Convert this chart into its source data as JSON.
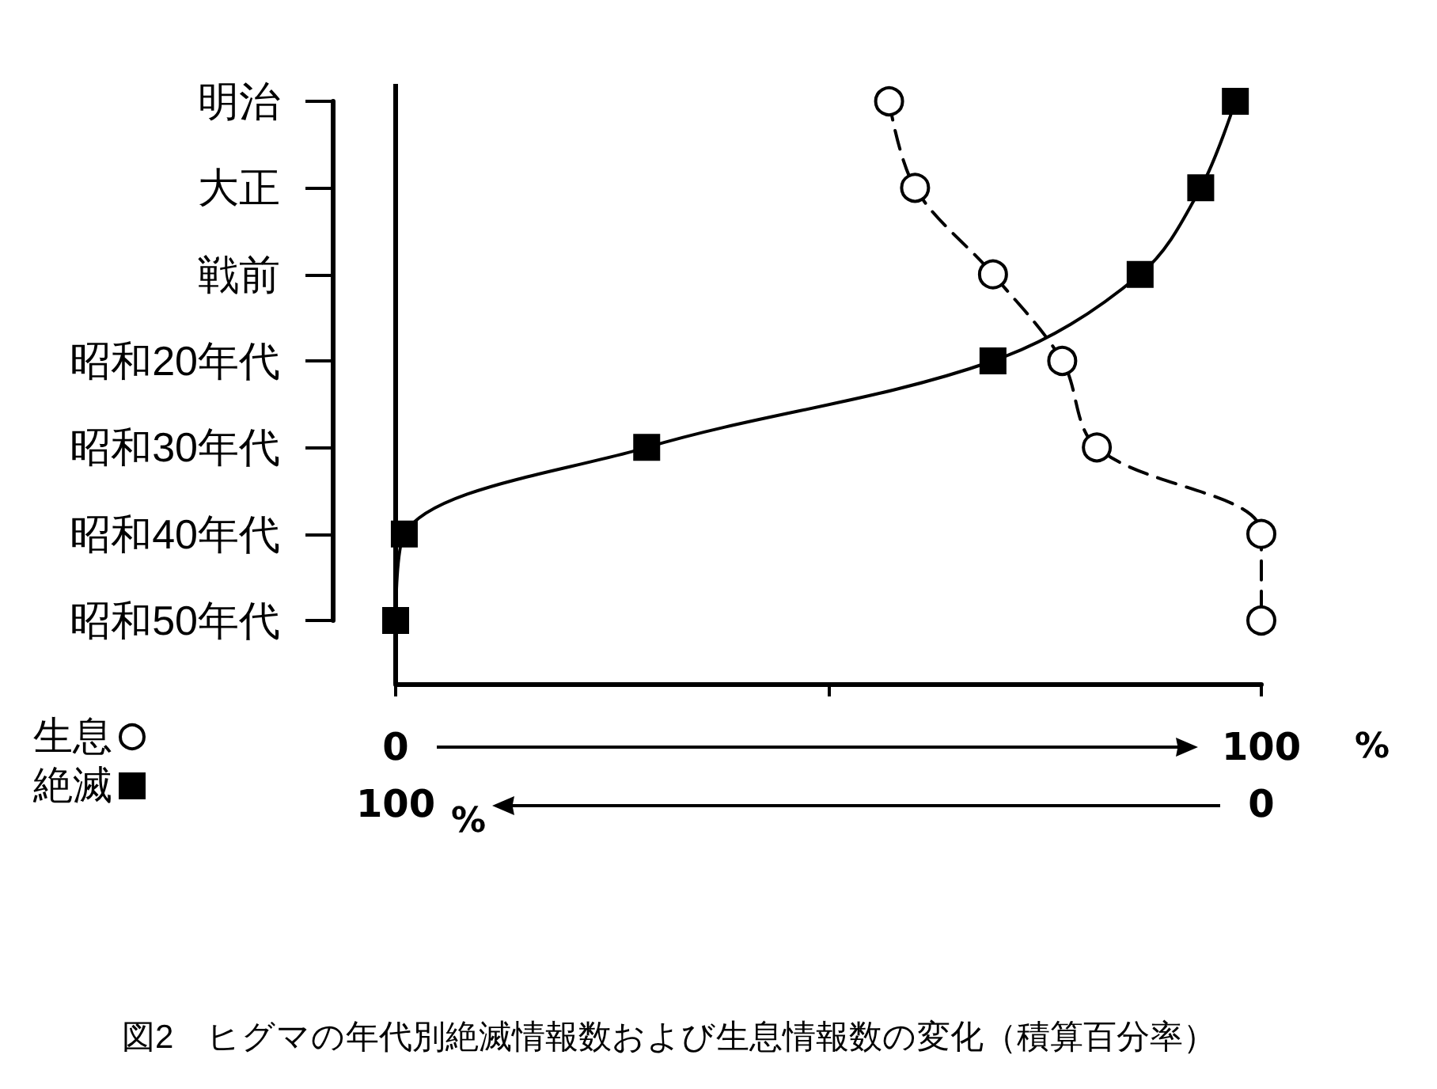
{
  "chart_data": {
    "type": "line",
    "orientation": "horizontal",
    "title": "図2　ヒグマの年代別絶滅情報数および生息情報数の変化（積算百分率）",
    "xlabel": "%",
    "x2label": "%",
    "categories": [
      "明治",
      "大正",
      "戦前",
      "昭和20年代",
      "昭和30年代",
      "昭和40年代",
      "昭和50年代"
    ],
    "xlim": [
      0,
      100
    ],
    "xticks": [
      0,
      {
        "value": 50,
        "label": null
      },
      100
    ],
    "x2lim": [
      100,
      0
    ],
    "x2ticks": [
      100,
      0
    ],
    "series": [
      {
        "name": "生息",
        "color": "#000000",
        "values": [
          57,
          60,
          69,
          77,
          81,
          100,
          100
        ],
        "marker": "circle",
        "line_style": "dashed"
      },
      {
        "name": "絶滅",
        "color": "#000000",
        "values": [
          3,
          7,
          14,
          31,
          71,
          99,
          100
        ],
        "marker": "square",
        "line_style": "solid",
        "axis": "x2"
      }
    ],
    "legend": "bottom left"
  }
}
